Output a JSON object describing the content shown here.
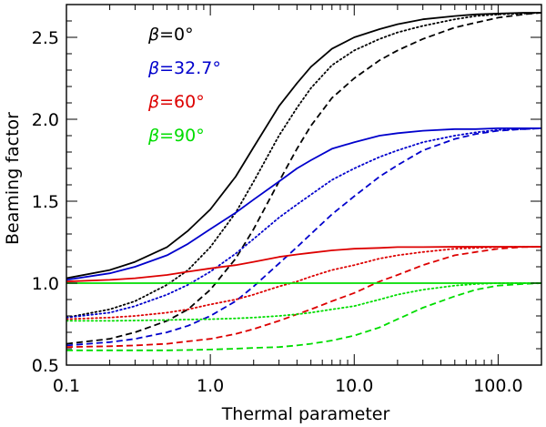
{
  "chart_data": {
    "type": "line",
    "xlabel": "Thermal parameter",
    "ylabel": "Beaming factor",
    "xscale": "log",
    "xlim": [
      0.1,
      200
    ],
    "ylim": [
      0.5,
      2.7
    ],
    "x_ticks": [
      {
        "value": 0.1,
        "label": "0.1"
      },
      {
        "value": 1,
        "label": "1.0"
      },
      {
        "value": 10,
        "label": "10.0"
      },
      {
        "value": 100,
        "label": "100.0"
      }
    ],
    "y_ticks": [
      {
        "value": 0.5,
        "label": "0.5"
      },
      {
        "value": 1.0,
        "label": "1.0"
      },
      {
        "value": 1.5,
        "label": "1.5"
      },
      {
        "value": 2.0,
        "label": "2.0"
      },
      {
        "value": 2.5,
        "label": "2.5"
      }
    ],
    "legend": [
      {
        "prefix": "β",
        "text": "=0°",
        "color": "#000000"
      },
      {
        "prefix": "β",
        "text": "=32.7°",
        "color": "#0000cc"
      },
      {
        "prefix": "β",
        "text": "=60°",
        "color": "#dd0000"
      },
      {
        "prefix": "β",
        "text": "=90°",
        "color": "#00dd00"
      }
    ],
    "series": [
      {
        "name": "β=0° solid",
        "color": "#000000",
        "dash": "solid",
        "x": [
          0.1,
          0.2,
          0.3,
          0.5,
          0.7,
          1,
          1.5,
          2,
          3,
          4,
          5,
          7,
          10,
          15,
          20,
          30,
          50,
          70,
          100,
          150,
          200
        ],
        "y": [
          1.03,
          1.08,
          1.13,
          1.22,
          1.32,
          1.45,
          1.65,
          1.83,
          2.08,
          2.22,
          2.32,
          2.43,
          2.5,
          2.55,
          2.58,
          2.61,
          2.63,
          2.64,
          2.645,
          2.65,
          2.65
        ]
      },
      {
        "name": "β=0° dotted",
        "color": "#000000",
        "dash": "dotted",
        "x": [
          0.1,
          0.2,
          0.3,
          0.5,
          0.7,
          1,
          1.5,
          2,
          3,
          4,
          5,
          7,
          10,
          15,
          20,
          30,
          50,
          70,
          100,
          150,
          200
        ],
        "y": [
          0.79,
          0.84,
          0.89,
          0.99,
          1.08,
          1.22,
          1.43,
          1.62,
          1.9,
          2.07,
          2.19,
          2.33,
          2.42,
          2.49,
          2.53,
          2.57,
          2.61,
          2.63,
          2.64,
          2.645,
          2.65
        ]
      },
      {
        "name": "β=0° dashed",
        "color": "#000000",
        "dash": "dashed",
        "x": [
          0.1,
          0.2,
          0.3,
          0.5,
          0.7,
          1,
          1.5,
          2,
          3,
          4,
          5,
          7,
          10,
          15,
          20,
          30,
          50,
          70,
          100,
          150,
          200
        ],
        "y": [
          0.63,
          0.66,
          0.7,
          0.77,
          0.84,
          0.96,
          1.15,
          1.33,
          1.62,
          1.82,
          1.96,
          2.13,
          2.25,
          2.36,
          2.42,
          2.49,
          2.56,
          2.59,
          2.62,
          2.64,
          2.65
        ]
      },
      {
        "name": "β=32.7° solid",
        "color": "#0000cc",
        "dash": "solid",
        "x": [
          0.1,
          0.2,
          0.3,
          0.5,
          0.7,
          1,
          1.5,
          2,
          3,
          4,
          5,
          7,
          10,
          15,
          20,
          30,
          50,
          70,
          100,
          150,
          200
        ],
        "y": [
          1.02,
          1.06,
          1.1,
          1.17,
          1.24,
          1.33,
          1.43,
          1.51,
          1.62,
          1.7,
          1.75,
          1.82,
          1.86,
          1.9,
          1.915,
          1.93,
          1.94,
          1.94,
          1.945,
          1.945,
          1.945
        ]
      },
      {
        "name": "β=32.7° dotted",
        "color": "#0000cc",
        "dash": "dotted",
        "x": [
          0.1,
          0.2,
          0.3,
          0.5,
          0.7,
          1,
          1.5,
          2,
          3,
          4,
          5,
          7,
          10,
          15,
          20,
          30,
          50,
          70,
          100,
          150,
          200
        ],
        "y": [
          0.79,
          0.82,
          0.86,
          0.93,
          0.99,
          1.07,
          1.18,
          1.27,
          1.4,
          1.48,
          1.54,
          1.63,
          1.7,
          1.77,
          1.81,
          1.86,
          1.9,
          1.92,
          1.935,
          1.94,
          1.945
        ]
      },
      {
        "name": "β=32.7° dashed",
        "color": "#0000cc",
        "dash": "dashed",
        "x": [
          0.1,
          0.2,
          0.3,
          0.5,
          0.7,
          1,
          1.5,
          2,
          3,
          4,
          5,
          7,
          10,
          15,
          20,
          30,
          50,
          70,
          100,
          150,
          200
        ],
        "y": [
          0.62,
          0.64,
          0.66,
          0.7,
          0.74,
          0.8,
          0.89,
          0.98,
          1.12,
          1.22,
          1.3,
          1.42,
          1.53,
          1.65,
          1.72,
          1.81,
          1.88,
          1.91,
          1.93,
          1.94,
          1.945
        ]
      },
      {
        "name": "β=60° solid",
        "color": "#dd0000",
        "dash": "solid",
        "x": [
          0.1,
          0.2,
          0.3,
          0.5,
          0.7,
          1,
          1.5,
          2,
          3,
          4,
          5,
          7,
          10,
          15,
          20,
          30,
          50,
          70,
          100,
          150,
          200
        ],
        "y": [
          1.01,
          1.02,
          1.03,
          1.05,
          1.07,
          1.09,
          1.11,
          1.13,
          1.16,
          1.175,
          1.185,
          1.2,
          1.21,
          1.215,
          1.22,
          1.22,
          1.222,
          1.222,
          1.222,
          1.222,
          1.222
        ]
      },
      {
        "name": "β=60° dotted",
        "color": "#dd0000",
        "dash": "dotted",
        "x": [
          0.1,
          0.2,
          0.3,
          0.5,
          0.7,
          1,
          1.5,
          2,
          3,
          4,
          5,
          7,
          10,
          15,
          20,
          30,
          50,
          70,
          100,
          150,
          200
        ],
        "y": [
          0.78,
          0.79,
          0.8,
          0.82,
          0.84,
          0.87,
          0.9,
          0.93,
          0.98,
          1.01,
          1.04,
          1.08,
          1.11,
          1.15,
          1.17,
          1.19,
          1.21,
          1.215,
          1.22,
          1.222,
          1.222
        ]
      },
      {
        "name": "β=60° dashed",
        "color": "#dd0000",
        "dash": "dashed",
        "x": [
          0.1,
          0.2,
          0.3,
          0.5,
          0.7,
          1,
          1.5,
          2,
          3,
          4,
          5,
          7,
          10,
          15,
          20,
          30,
          50,
          70,
          100,
          150,
          200
        ],
        "y": [
          0.61,
          0.615,
          0.62,
          0.63,
          0.645,
          0.66,
          0.69,
          0.72,
          0.77,
          0.81,
          0.84,
          0.89,
          0.94,
          1.01,
          1.05,
          1.11,
          1.17,
          1.19,
          1.21,
          1.22,
          1.222
        ]
      },
      {
        "name": "β=90° solid",
        "color": "#00dd00",
        "dash": "solid",
        "x": [
          0.1,
          200
        ],
        "y": [
          1.0,
          1.0
        ]
      },
      {
        "name": "β=90° dotted",
        "color": "#00dd00",
        "dash": "dotted",
        "x": [
          0.1,
          0.2,
          0.3,
          0.5,
          0.7,
          1,
          1.5,
          2,
          3,
          4,
          5,
          7,
          10,
          15,
          20,
          30,
          50,
          70,
          100,
          150,
          200
        ],
        "y": [
          0.77,
          0.77,
          0.772,
          0.775,
          0.778,
          0.78,
          0.785,
          0.79,
          0.8,
          0.81,
          0.82,
          0.84,
          0.86,
          0.9,
          0.93,
          0.96,
          0.985,
          0.995,
          1.0,
          1.0,
          1.0
        ]
      },
      {
        "name": "β=90° dashed",
        "color": "#00dd00",
        "dash": "dashed",
        "x": [
          0.1,
          0.2,
          0.3,
          0.5,
          0.7,
          1,
          1.5,
          2,
          3,
          4,
          5,
          7,
          10,
          15,
          20,
          30,
          50,
          70,
          100,
          150,
          200
        ],
        "y": [
          0.59,
          0.59,
          0.59,
          0.59,
          0.592,
          0.595,
          0.6,
          0.605,
          0.61,
          0.62,
          0.63,
          0.65,
          0.68,
          0.73,
          0.78,
          0.85,
          0.92,
          0.96,
          0.985,
          0.995,
          1.0
        ]
      }
    ]
  }
}
